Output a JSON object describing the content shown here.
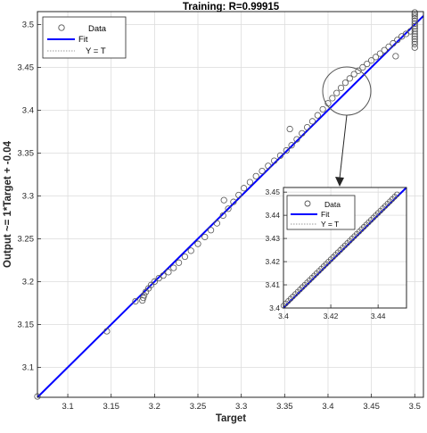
{
  "chart_data": [
    {
      "type": "scatter",
      "title": "Training: R=0.99915",
      "xlabel": "Target",
      "ylabel": "Output ~= 1*Target + -0.04",
      "xlim": [
        3.065,
        3.51
      ],
      "ylim": [
        3.065,
        3.515
      ],
      "xticks": [
        3.1,
        3.15,
        3.2,
        3.25,
        3.3,
        3.35,
        3.4,
        3.45,
        3.5
      ],
      "xtick_labels": [
        "3.1",
        "3.15",
        "3.2",
        "3.25",
        "3.3",
        "3.35",
        "3.4",
        "3.45",
        "3.5"
      ],
      "yticks": [
        3.1,
        3.15,
        3.2,
        3.25,
        3.3,
        3.35,
        3.4,
        3.45,
        3.5
      ],
      "ytick_labels": [
        "3.1",
        "3.15",
        "3.2",
        "3.25",
        "3.3",
        "3.35",
        "3.4",
        "3.45",
        "3.5"
      ],
      "grid": true,
      "legend": {
        "position": "top-left",
        "entries": [
          "Data",
          "Fit",
          "Y = T"
        ]
      },
      "series": [
        {
          "name": "Data",
          "marker": "circle",
          "x": [
            3.065,
            3.145,
            3.178,
            3.186,
            3.187,
            3.188,
            3.19,
            3.193,
            3.196,
            3.2,
            3.205,
            3.21,
            3.216,
            3.222,
            3.228,
            3.235,
            3.242,
            3.25,
            3.258,
            3.265,
            3.272,
            3.279,
            3.285,
            3.291,
            3.297,
            3.303,
            3.31,
            3.317,
            3.324,
            3.331,
            3.338,
            3.345,
            3.352,
            3.358,
            3.364,
            3.37,
            3.376,
            3.382,
            3.388,
            3.394,
            3.4,
            3.405,
            3.41,
            3.415,
            3.42,
            3.425,
            3.43,
            3.435,
            3.44,
            3.445,
            3.45,
            3.455,
            3.46,
            3.465,
            3.47,
            3.475,
            3.48,
            3.485,
            3.49,
            3.495,
            3.28,
            3.356,
            3.478,
            3.5,
            3.5,
            3.5,
            3.5,
            3.5,
            3.5,
            3.5,
            3.5,
            3.5,
            3.5,
            3.5,
            3.5,
            3.5,
            3.5,
            3.5
          ],
          "y": [
            3.066,
            3.142,
            3.177,
            3.178,
            3.181,
            3.184,
            3.188,
            3.192,
            3.196,
            3.2,
            3.204,
            3.207,
            3.211,
            3.216,
            3.222,
            3.229,
            3.236,
            3.244,
            3.252,
            3.26,
            3.268,
            3.277,
            3.285,
            3.293,
            3.301,
            3.309,
            3.316,
            3.323,
            3.329,
            3.335,
            3.341,
            3.347,
            3.353,
            3.359,
            3.366,
            3.373,
            3.38,
            3.387,
            3.394,
            3.401,
            3.408,
            3.414,
            3.42,
            3.426,
            3.432,
            3.437,
            3.442,
            3.446,
            3.45,
            3.454,
            3.458,
            3.462,
            3.466,
            3.47,
            3.474,
            3.478,
            3.482,
            3.486,
            3.489,
            3.492,
            3.295,
            3.378,
            3.463,
            3.473,
            3.477,
            3.48,
            3.483,
            3.486,
            3.489,
            3.492,
            3.495,
            3.498,
            3.501,
            3.504,
            3.507,
            3.51,
            3.512,
            3.514
          ]
        },
        {
          "name": "Fit",
          "style": "line",
          "x": [
            3.065,
            3.51
          ],
          "y": [
            3.065,
            3.51
          ]
        },
        {
          "name": "Y = T",
          "style": "dotted",
          "x": [
            3.065,
            3.51
          ],
          "y": [
            3.065,
            3.51
          ]
        }
      ]
    },
    {
      "type": "scatter",
      "xlim": [
        3.4,
        3.452
      ],
      "ylim": [
        3.4,
        3.452
      ],
      "xticks": [
        3.4,
        3.42,
        3.44
      ],
      "xtick_labels": [
        "3.4",
        "3.42",
        "3.44"
      ],
      "yticks": [
        3.4,
        3.41,
        3.42,
        3.43,
        3.44,
        3.45
      ],
      "ytick_labels": [
        "3.4",
        "3.41",
        "3.42",
        "3.43",
        "3.44",
        "3.45"
      ],
      "grid": true,
      "legend": {
        "position": "top-left",
        "entries": [
          "Data",
          "Fit",
          "Y = T"
        ]
      },
      "series": [
        {
          "name": "Data",
          "marker": "circle",
          "x": [
            3.4,
            3.401,
            3.402,
            3.403,
            3.404,
            3.405,
            3.406,
            3.407,
            3.408,
            3.409,
            3.41,
            3.411,
            3.412,
            3.413,
            3.414,
            3.415,
            3.416,
            3.417,
            3.418,
            3.419,
            3.42,
            3.421,
            3.422,
            3.423,
            3.424,
            3.425,
            3.426,
            3.427,
            3.428,
            3.429,
            3.43,
            3.431,
            3.432,
            3.433,
            3.434,
            3.435,
            3.436,
            3.437,
            3.438,
            3.439,
            3.44,
            3.441,
            3.442,
            3.443,
            3.444,
            3.445,
            3.446,
            3.447,
            3.448
          ],
          "y": [
            3.401,
            3.402,
            3.403,
            3.404,
            3.405,
            3.406,
            3.407,
            3.408,
            3.409,
            3.41,
            3.411,
            3.412,
            3.413,
            3.414,
            3.415,
            3.416,
            3.417,
            3.418,
            3.419,
            3.42,
            3.421,
            3.422,
            3.423,
            3.424,
            3.425,
            3.426,
            3.427,
            3.428,
            3.429,
            3.43,
            3.431,
            3.432,
            3.433,
            3.434,
            3.435,
            3.436,
            3.437,
            3.438,
            3.439,
            3.44,
            3.441,
            3.442,
            3.443,
            3.444,
            3.445,
            3.446,
            3.447,
            3.448,
            3.449
          ]
        },
        {
          "name": "Fit",
          "style": "line",
          "x": [
            3.4,
            3.452
          ],
          "y": [
            3.4,
            3.452
          ]
        },
        {
          "name": "Y = T",
          "style": "dotted",
          "x": [
            3.4,
            3.452
          ],
          "y": [
            3.4,
            3.452
          ]
        }
      ]
    }
  ],
  "legend": {
    "data_label": "Data",
    "fit_label": "Fit",
    "yt_label": "Y = T"
  },
  "colors": {
    "fit": "#0000ff",
    "data_marker": "#555555",
    "grid": "#dcdcdc",
    "axes": "#262626",
    "identity": "#999999"
  }
}
